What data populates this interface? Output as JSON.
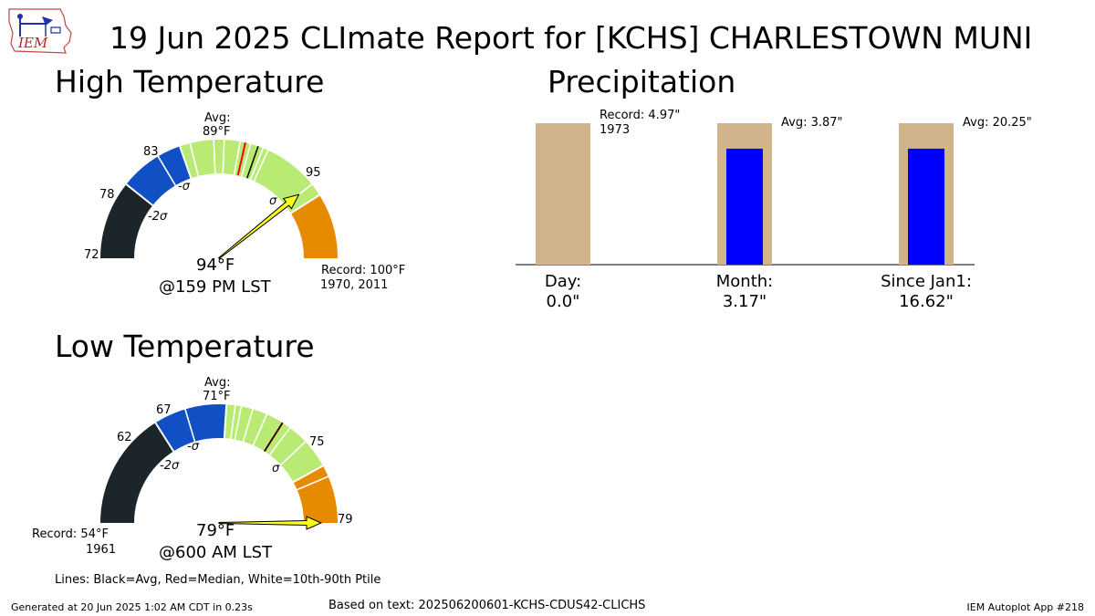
{
  "header": {
    "title": "19 Jun 2025 CLImate Report for [KCHS] CHARLESTOWN MUNI",
    "logo_text": "IEM"
  },
  "high": {
    "section_title": "High Temperature",
    "avg_label": "Avg:",
    "avg_value": "89",
    "unit": "°F",
    "tick_min": "72",
    "tick_m2": "78",
    "tick_m1": "83",
    "tick_p1": "95",
    "sig_m2": "-2σ",
    "sig_m1": "-σ",
    "sig_p1": "σ",
    "observed": "94",
    "time": "@159 PM LST",
    "record_label": "Record: 100",
    "record_years": "1970, 2011"
  },
  "low": {
    "section_title": "Low Temperature",
    "avg_label": "Avg:",
    "avg_value": "71",
    "unit": "°F",
    "tick_m2": "62",
    "tick_m1": "67",
    "tick_p1": "75",
    "tick_max": "79",
    "sig_m2": "-2σ",
    "sig_m1": "-σ",
    "sig_p1": "σ",
    "observed": "79",
    "time": "@600 AM LST",
    "record_label": "Record: 54",
    "record_years": "1961"
  },
  "precip": {
    "section_title": "Precipitation"
  },
  "footer": {
    "legend_note": "Lines: Black=Avg, Red=Median, White=10th-90th Ptile",
    "generated": "Generated at 20 Jun 2025 1:02 AM CDT in 0.23s",
    "based_on": "Based on text: 202506200601-KCHS-CDUS42-CLICHS",
    "app": "IEM Autoplot App #218"
  },
  "colors": {
    "dark": "#1c2529",
    "blue": "#1150c4",
    "green": "#b8ea74",
    "orange": "#e68a00",
    "needle": "#ffff1a",
    "tan": "#d2b48c",
    "bar_blue": "#0000ff",
    "median": "#ff0000"
  },
  "chart_data": [
    {
      "type": "gauge",
      "title": "High Temperature",
      "unit": "°F",
      "range": [
        72,
        100
      ],
      "bands": [
        {
          "from": 72,
          "to": 78,
          "color": "dark"
        },
        {
          "from": 78,
          "to": 83,
          "color": "blue"
        },
        {
          "from": 83,
          "to": 95,
          "color": "green"
        },
        {
          "from": 95,
          "to": 100,
          "color": "orange"
        }
      ],
      "average": 89,
      "median": 88,
      "percentile_lines": [
        81.2,
        83.8,
        85.6,
        86.4,
        87.6,
        88.4,
        89.4,
        89.8,
        94.0
      ],
      "std_minus2": 78,
      "std_minus1": 83,
      "std_plus1": 95,
      "observed": 94,
      "observed_time": "@159 PM LST",
      "record": 100,
      "record_years": "1970, 2011"
    },
    {
      "type": "gauge",
      "title": "Low Temperature",
      "unit": "°F",
      "range": [
        54,
        79
      ],
      "bands": [
        {
          "from": 54,
          "to": 62,
          "color": "dark"
        },
        {
          "from": 62,
          "to": 67,
          "color": "blue"
        },
        {
          "from": 67,
          "to": 75,
          "color": "green"
        },
        {
          "from": 75,
          "to": 79,
          "color": "orange"
        }
      ],
      "average": 71,
      "median": 71,
      "percentile_lines": [
        64.2,
        67.6,
        68.0,
        68.8,
        69.8,
        71.6,
        73.0,
        75.8
      ],
      "std_minus2": 62,
      "std_minus1": 67,
      "std_plus1": 75,
      "observed": 79,
      "observed_time": "@600 AM LST",
      "record": 54,
      "record_years": "1961"
    },
    {
      "type": "bar",
      "title": "Precipitation",
      "unit": "\"",
      "categories": [
        "Day:",
        "Month:",
        "Since Jan1:"
      ],
      "observed": [
        0.0,
        3.17,
        16.62
      ],
      "observed_labels": [
        "0.0\"",
        "3.17\"",
        "16.62\""
      ],
      "reference_labels": [
        "Record: 4.97\"",
        "Avg: 3.87\"",
        "Avg: 20.25\""
      ],
      "record_year": "1973",
      "reference_fill_fraction": 1.0,
      "observed_fill_fraction": [
        0.0,
        0.82,
        0.82
      ]
    }
  ]
}
